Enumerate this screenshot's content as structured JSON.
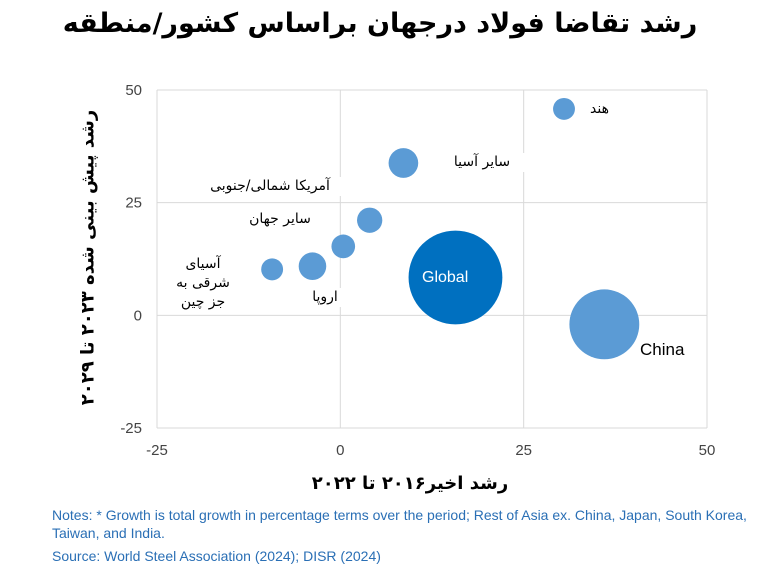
{
  "chart_data": {
    "type": "scatter",
    "title": "رشد تقاضا فولاد درجهان براساس کشور/منطقه",
    "xlabel": "رشد اخیر۲۰۱۶ تا ۲۰۲۲",
    "ylabel": "رشد پیش بینی شده ۲۰۲۳ تا ۲۰۲۹",
    "xlim": [
      -25,
      50
    ],
    "ylim": [
      -25,
      50
    ],
    "xticks": [
      "-25",
      "0",
      "25",
      "50"
    ],
    "yticks": [
      "-25",
      "0",
      "25",
      "50"
    ],
    "grid": true,
    "points": [
      {
        "label": "هند",
        "x": 30.5,
        "y": 45.8,
        "size": 1.2,
        "color": "#5b9bd5"
      },
      {
        "label": "سایر آسیا",
        "x": 8.6,
        "y": 33.8,
        "size": 2.2,
        "color": "#5b9bd5"
      },
      {
        "label": "سایر جهان",
        "x": 4,
        "y": 21.1,
        "size": 1.6,
        "color": "#5b9bd5"
      },
      {
        "label": "آمریکا شمالی/جنوبی",
        "x": 0.4,
        "y": 15.3,
        "size": 1.4,
        "color": "#5b9bd5"
      },
      {
        "label": "اروپا",
        "x": -3.8,
        "y": 10.9,
        "size": 1.9,
        "color": "#5b9bd5"
      },
      {
        "label": "آسیای شرقی به جز چین",
        "x": -9.3,
        "y": 10.2,
        "size": 1.2,
        "color": "#5b9bd5"
      },
      {
        "label": "Global",
        "x": 15.7,
        "y": 8.4,
        "size": 22,
        "color": "#0070c0"
      },
      {
        "label": "China",
        "x": 36,
        "y": -2,
        "size": 12.2,
        "color": "#5b9bd5"
      }
    ]
  },
  "notes": "Notes: * Growth is total growth in percentage terms over the period; Rest of Asia ex. China, Japan, South Korea, Taiwan, and India.",
  "source": "Source: World Steel Association (2024); DISR (2024)"
}
